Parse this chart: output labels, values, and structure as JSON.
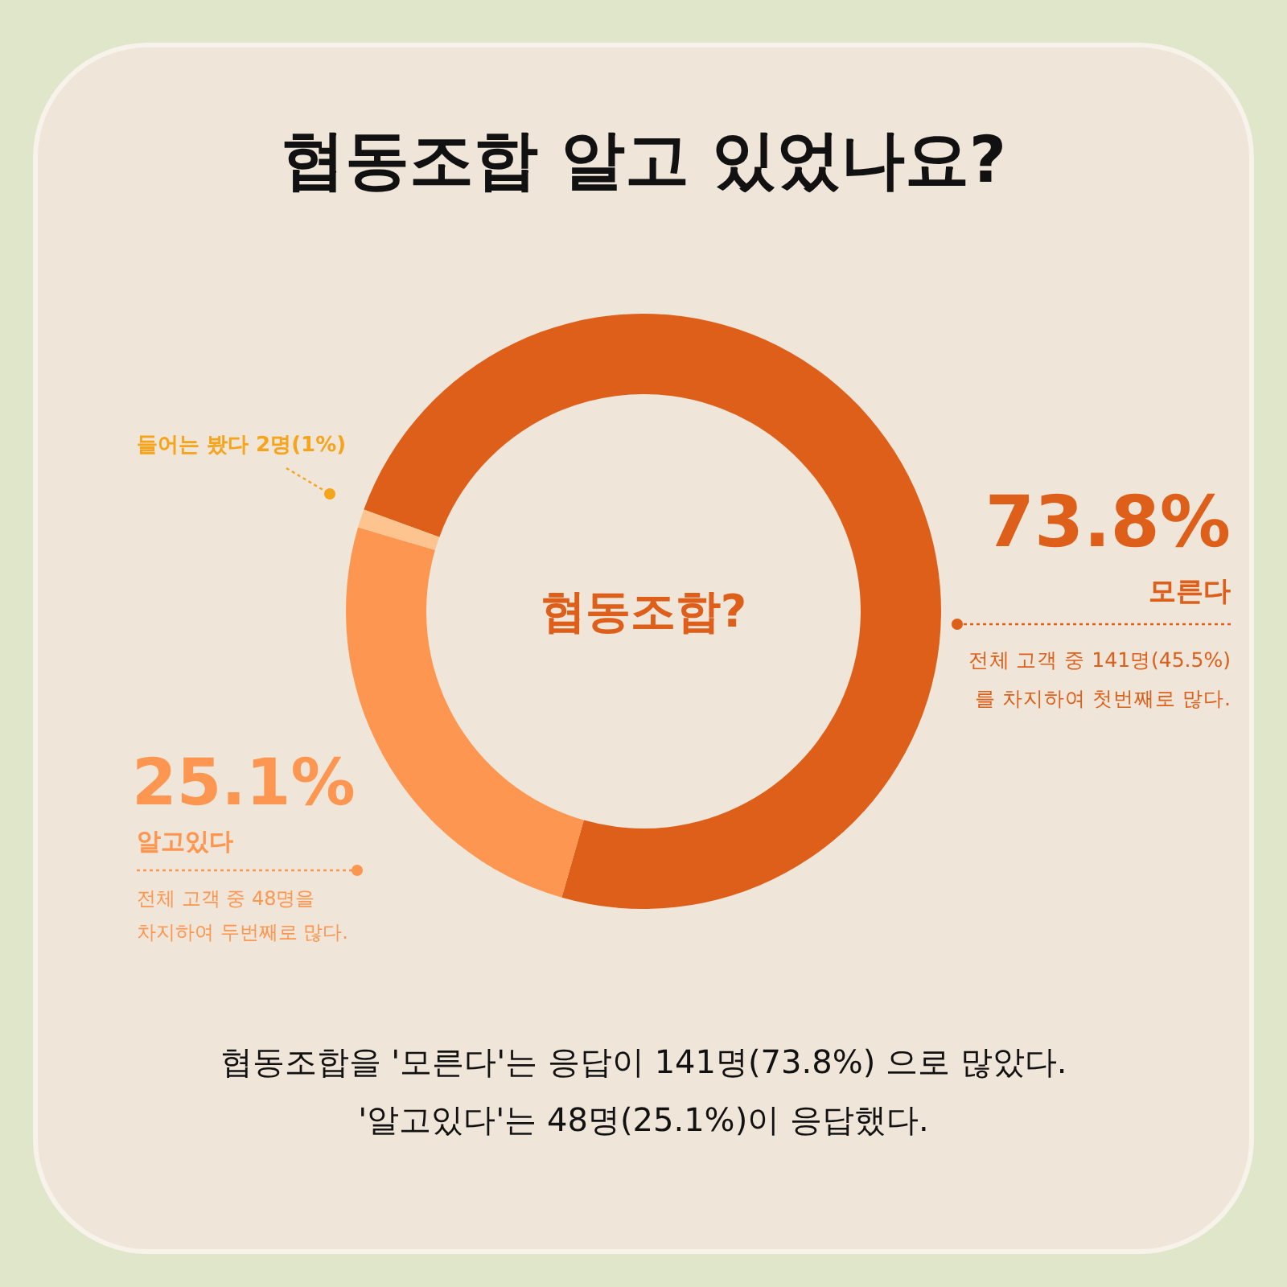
{
  "chart_data": {
    "type": "donut",
    "title": "협동조합 알고 있었나요?",
    "categories": [
      "모른다",
      "알고있다",
      "들어는 봤다"
    ],
    "values": [
      73.8,
      25.1,
      1
    ],
    "colors": [
      "#dd5f1a",
      "#fd9650",
      "#fdc48f"
    ],
    "value_labels": [
      "73.8%",
      "25.1%",
      "2명(1%)"
    ],
    "legend": false,
    "annotations": [
      "협동조합?",
      "전체 고객 중 141명(45.5%)\n를 차지하여 첫번째로 많다.",
      "전체 고객 중 48명을\n차지하여 두번째로 많다.",
      "협동조합을 '모른다'는 응답이 141명(73.8%) 으로 많았다.",
      "'알고있다'는 48명(25.1%)이 응답했다."
    ]
  }
}
